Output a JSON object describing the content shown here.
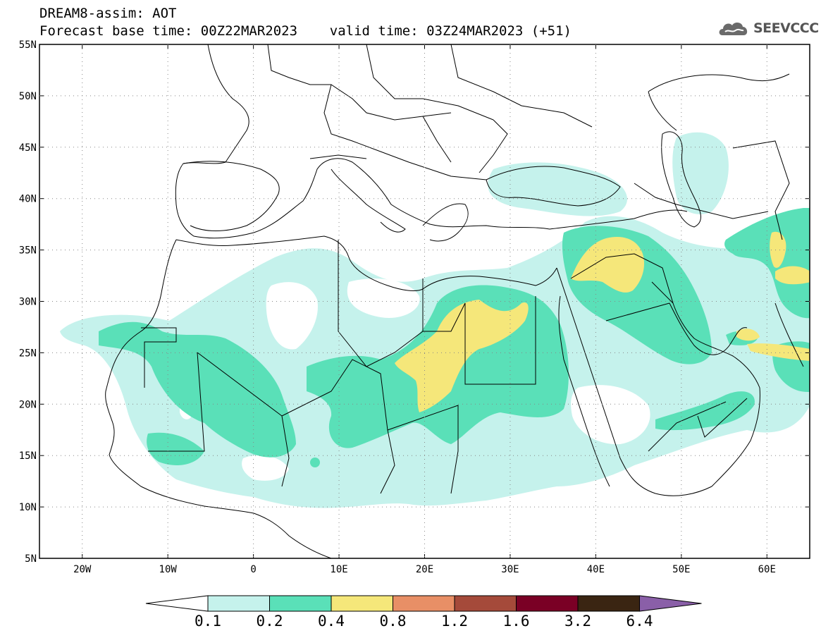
{
  "header": {
    "line1": "DREAM8-assim: AOT",
    "line2": "Forecast base time: 00Z22MAR2023    valid time: 03Z24MAR2023 (+51)"
  },
  "logo": {
    "text": "SEEVCCC",
    "icon": "cloud-icon"
  },
  "map": {
    "lat_ticks": [
      "55N",
      "50N",
      "45N",
      "40N",
      "35N",
      "30N",
      "25N",
      "20N",
      "15N",
      "10N",
      "5N"
    ],
    "lon_ticks": [
      "20W",
      "10W",
      "0",
      "10E",
      "20E",
      "30E",
      "40E",
      "50E",
      "60E"
    ],
    "extent": {
      "lon_min": -25,
      "lon_max": 65,
      "lat_min": 5,
      "lat_max": 55
    }
  },
  "colorbar": {
    "levels": [
      "0.1",
      "0.2",
      "0.4",
      "0.8",
      "1.2",
      "1.6",
      "3.2",
      "6.4"
    ],
    "colors": [
      "#ffffff",
      "#c5f2ec",
      "#5ae0b8",
      "#f5e77a",
      "#e88f66",
      "#a54a3a",
      "#7a0025",
      "#3a2512",
      "#8a5fa8"
    ]
  },
  "colors": {
    "light_cyan": "#c5f2ec",
    "green": "#5ae0b8",
    "yellow": "#f5e77a",
    "border": "#000000"
  }
}
